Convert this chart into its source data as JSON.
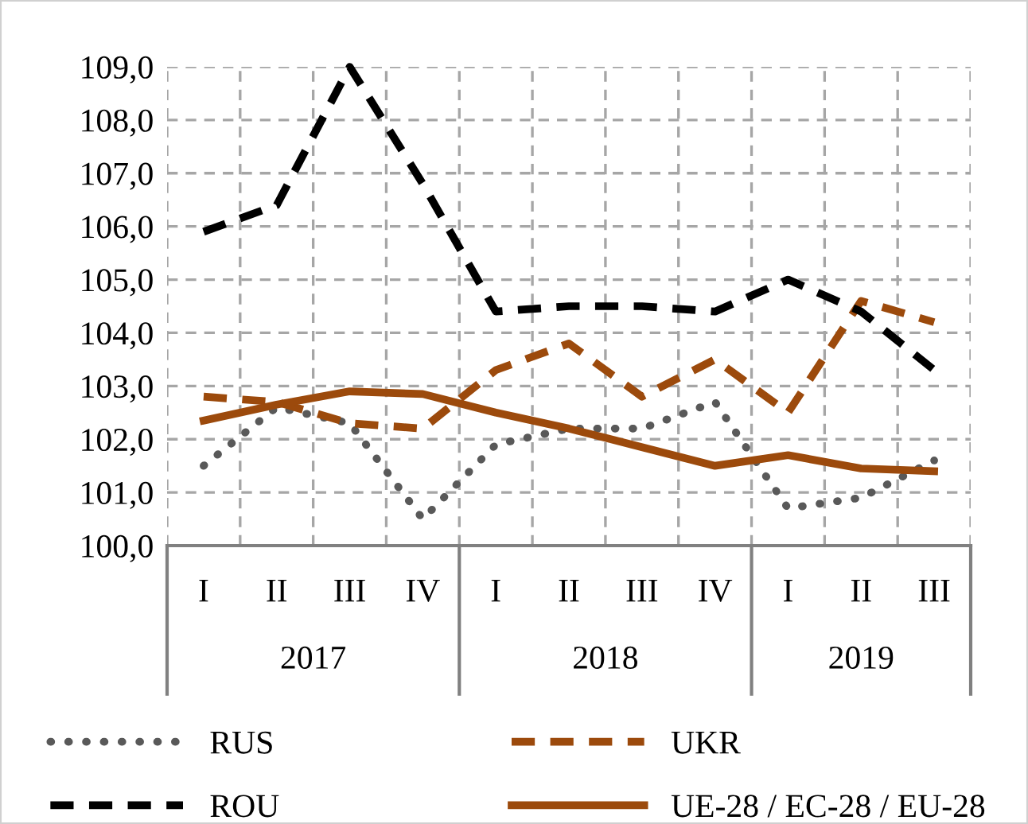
{
  "chart_data": {
    "type": "line",
    "categories": [
      "I",
      "II",
      "III",
      "IV",
      "I",
      "II",
      "III",
      "IV",
      "I",
      "II",
      "III"
    ],
    "series": [
      {
        "name": "RUS",
        "color": "#595959",
        "line_style": "dotted",
        "values": [
          101.5,
          102.6,
          102.3,
          100.5,
          101.9,
          102.2,
          102.2,
          102.7,
          100.7,
          100.9,
          101.6
        ]
      },
      {
        "name": "UKR",
        "color": "#9c4a0c",
        "line_style": "dashed",
        "values": [
          102.8,
          102.7,
          102.3,
          102.2,
          103.3,
          103.8,
          102.8,
          103.5,
          102.5,
          104.6,
          104.2
        ]
      },
      {
        "name": "ROU",
        "color": "#000000",
        "line_style": "dashed",
        "values": [
          105.9,
          106.4,
          109.0,
          106.8,
          104.4,
          104.5,
          104.5,
          104.4,
          105.0,
          104.4,
          103.3
        ]
      },
      {
        "name": "UE-28 / EC-28 / EU-28",
        "color": "#9c4a0c",
        "line_style": "solid",
        "values": [
          102.35,
          102.65,
          102.9,
          102.85,
          102.5,
          102.2,
          101.85,
          101.5,
          101.7,
          101.45,
          101.4
        ]
      }
    ],
    "ylim": [
      100,
      109
    ],
    "yticks": [
      {
        "value": 100,
        "label": "100,0"
      },
      {
        "value": 101,
        "label": "101,0"
      },
      {
        "value": 102,
        "label": "102,0"
      },
      {
        "value": 103,
        "label": "103,0"
      },
      {
        "value": 104,
        "label": "104,0"
      },
      {
        "value": 105,
        "label": "105,0"
      },
      {
        "value": 106,
        "label": "106,0"
      },
      {
        "value": 107,
        "label": "107,0"
      },
      {
        "value": 108,
        "label": "108,0"
      },
      {
        "value": 109,
        "label": "109,0"
      }
    ],
    "annotations": [
      "2017",
      "2018",
      "2019"
    ],
    "grid": true,
    "legend": "bottom",
    "marker": "none"
  }
}
